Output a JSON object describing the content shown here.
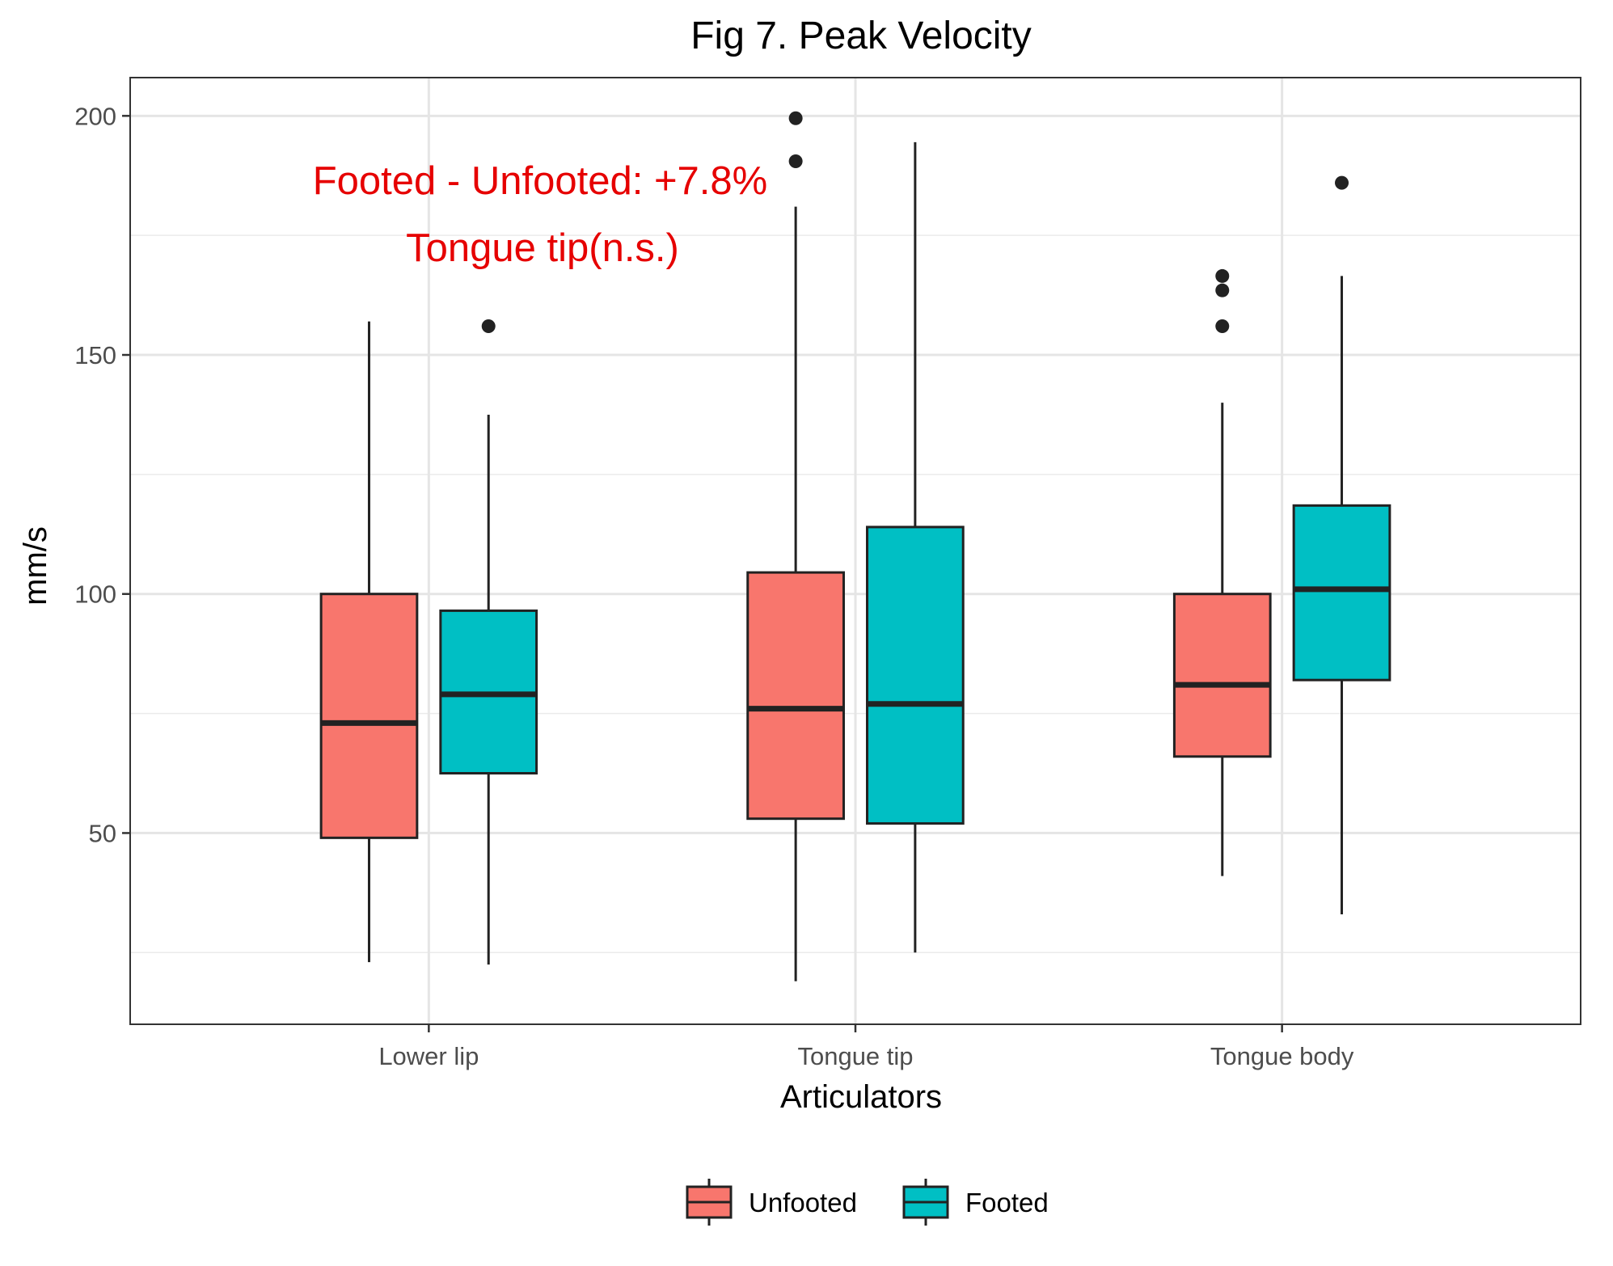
{
  "chart_data": {
    "type": "boxplot",
    "title": "Fig 7. Peak Velocity",
    "xlabel": "Articulators",
    "ylabel": "mm/s",
    "categories": [
      "Lower lip",
      "Tongue tip",
      "Tongue body"
    ],
    "ylim": [
      10,
      208
    ],
    "y_ticks": [
      50,
      100,
      150,
      200
    ],
    "y_tick_labels": [
      "50",
      "100",
      "150",
      "200"
    ],
    "grid": true,
    "legend": {
      "position": "bottom",
      "entries": [
        {
          "name": "Unfooted",
          "color": "#F8766D"
        },
        {
          "name": "Footed",
          "color": "#00BFC4"
        }
      ]
    },
    "series": [
      {
        "name": "Unfooted",
        "color": "#F8766D",
        "boxes": [
          {
            "category": "Lower lip",
            "whisker_low": 23,
            "q1": 49,
            "median": 73,
            "q3": 100,
            "whisker_high": 157,
            "outliers": []
          },
          {
            "category": "Tongue tip",
            "whisker_low": 19,
            "q1": 53,
            "median": 76,
            "q3": 104.5,
            "whisker_high": 181,
            "outliers": [
              190.5,
              199.5
            ]
          },
          {
            "category": "Tongue body",
            "whisker_low": 41,
            "q1": 66,
            "median": 81,
            "q3": 100,
            "whisker_high": 140,
            "outliers": [
              156,
              163.5,
              166.5
            ]
          }
        ]
      },
      {
        "name": "Footed",
        "color": "#00BFC4",
        "boxes": [
          {
            "category": "Lower lip",
            "whisker_low": 22.5,
            "q1": 62.5,
            "median": 79,
            "q3": 96.5,
            "whisker_high": 137.5,
            "outliers": [
              156
            ]
          },
          {
            "category": "Tongue tip",
            "whisker_low": 25,
            "q1": 52,
            "median": 77,
            "q3": 114,
            "whisker_high": 194.5,
            "outliers": []
          },
          {
            "category": "Tongue body",
            "whisker_low": 33,
            "q1": 82,
            "median": 101,
            "q3": 118.5,
            "whisker_high": 166.5,
            "outliers": [
              186
            ]
          }
        ]
      }
    ],
    "annotations": [
      {
        "text": "Footed - Unfooted: +7.8%",
        "color": "#E60000"
      },
      {
        "text": "Tongue tip(n.s.)",
        "color": "#E60000"
      }
    ]
  }
}
